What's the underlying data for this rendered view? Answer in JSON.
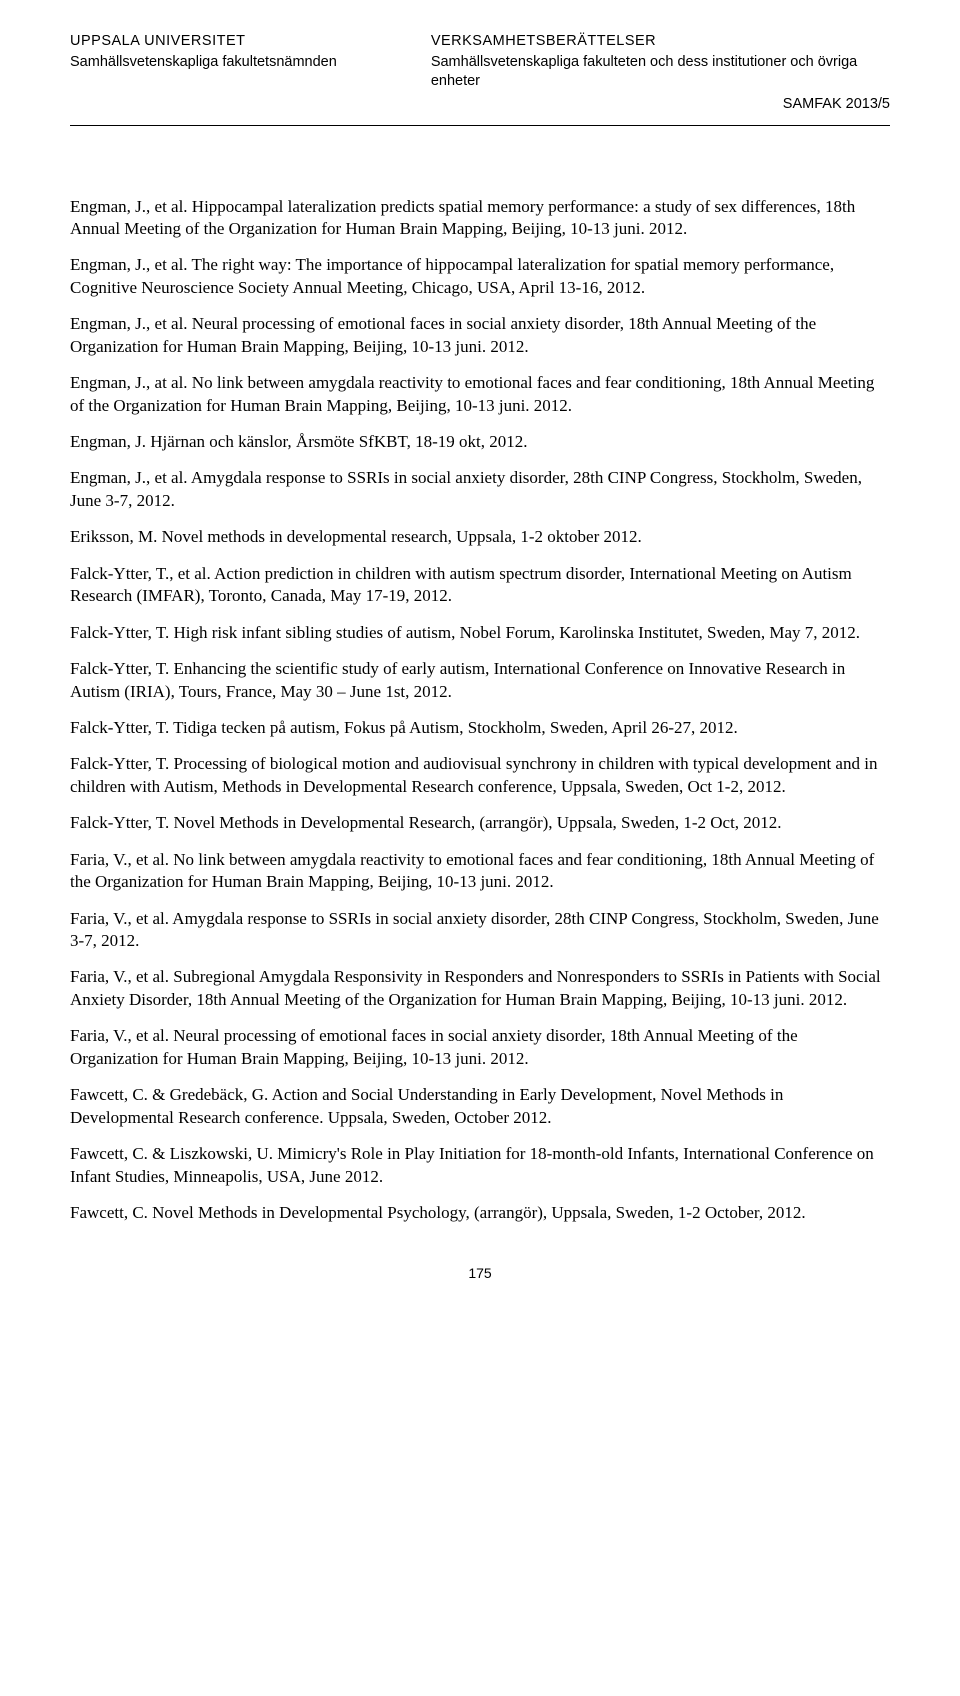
{
  "header": {
    "left_title": "UPPSALA UNIVERSITET",
    "left_sub": "Samhällsvetenskapliga fakultetsnämnden",
    "right_title": "VERKSAMHETSBERÄTTELSER",
    "right_sub": "Samhällsvetenskapliga fakulteten och dess institutioner och övriga enheter",
    "ref": "SAMFAK 2013/5"
  },
  "entries": [
    "Engman, J., et al. Hippocampal lateralization predicts spatial memory performance: a study of sex differences, 18th Annual Meeting of the Organization for Human Brain Mapping, Beijing, 10-13 juni. 2012.",
    "Engman, J., et al. The right way: The importance of hippocampal lateralization for spatial memory performance, Cognitive Neuroscience Society Annual Meeting, Chicago, USA, April 13-16, 2012.",
    "Engman, J., et al. Neural processing of emotional faces in social anxiety disorder, 18th Annual Meeting of the Organization for Human Brain Mapping, Beijing, 10-13 juni. 2012.",
    "Engman, J., at al. No link between amygdala reactivity to emotional faces and fear conditioning, 18th Annual Meeting of the Organization for Human Brain Mapping, Beijing, 10-13 juni. 2012.",
    "Engman, J. Hjärnan och känslor, Årsmöte SfKBT, 18-19 okt, 2012.",
    "Engman, J., et al. Amygdala response to SSRIs in social anxiety disorder, 28th CINP Congress, Stockholm, Sweden, June 3-7, 2012.",
    "Eriksson, M. Novel methods in developmental research, Uppsala, 1-2 oktober 2012.",
    "Falck-Ytter, T., et al. Action prediction in children with autism spectrum disorder, International Meeting on Autism Research (IMFAR), Toronto, Canada, May 17-19, 2012.",
    "Falck-Ytter, T. High risk infant sibling studies of autism, Nobel Forum, Karolinska Institutet, Sweden, May 7, 2012.",
    "Falck-Ytter, T. Enhancing the scientific study of early autism, International Conference on Innovative Research in Autism (IRIA), Tours, France, May 30 – June 1st, 2012.",
    "Falck-Ytter, T. Tidiga tecken på autism, Fokus på Autism, Stockholm, Sweden, April 26-27, 2012.",
    "Falck-Ytter, T. Processing of biological motion and audiovisual synchrony in children with typical development and in children with Autism, Methods in Developmental Research conference, Uppsala, Sweden, Oct 1-2, 2012.",
    "Falck-Ytter, T. Novel Methods in Developmental Research, (arrangör), Uppsala, Sweden, 1-2 Oct, 2012.",
    "Faria, V., et al. No link between amygdala reactivity to emotional faces and fear conditioning, 18th Annual Meeting of the Organization for Human Brain Mapping, Beijing, 10-13 juni. 2012.",
    "Faria, V., et al. Amygdala response to SSRIs in social anxiety disorder, 28th CINP Congress, Stockholm, Sweden, June 3-7, 2012.",
    "Faria, V., et al. Subregional Amygdala Responsivity in Responders and Nonresponders to SSRIs in Patients with Social Anxiety Disorder, 18th Annual Meeting of the Organization for Human Brain Mapping, Beijing, 10-13 juni. 2012.",
    "Faria, V., et al. Neural processing of emotional faces in social anxiety disorder, 18th Annual Meeting of the Organization for Human Brain Mapping, Beijing, 10-13 juni. 2012.",
    "Fawcett, C. & Gredebäck, G. Action and Social Understanding in Early Development, Novel Methods in Developmental Research conference. Uppsala, Sweden, October 2012.",
    "Fawcett, C. & Liszkowski, U. Mimicry's Role in Play Initiation for 18-month-old Infants, International Conference on Infant Studies, Minneapolis, USA, June 2012.",
    "Fawcett, C. Novel Methods in Developmental Psychology, (arrangör), Uppsala, Sweden, 1-2 October, 2012."
  ],
  "page_number": "175"
}
